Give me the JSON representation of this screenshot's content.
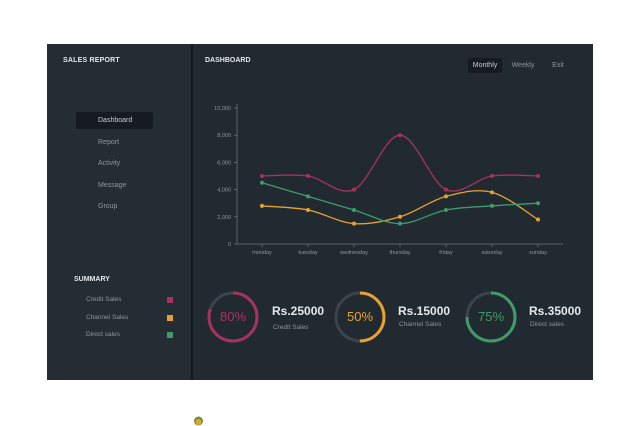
{
  "sidebar": {
    "title": "SALES REPORT",
    "nav": [
      "Dashboard",
      "Report",
      "Activity",
      "Message",
      "Group"
    ],
    "active_nav": "Dashboard",
    "summary_title": "SUMMARY",
    "summary": [
      {
        "label": "Credit Sales",
        "color": "#a8325d"
      },
      {
        "label": "Channel Sales",
        "color": "#e9a12f"
      },
      {
        "label": "Direct sales",
        "color": "#3f9c6a"
      }
    ]
  },
  "header": {
    "title": "DASHBOARD",
    "tabs": [
      "Monthly",
      "Weekly",
      "Exit"
    ],
    "active_tab": "Monthly"
  },
  "chart_data": {
    "type": "line",
    "x": [
      "monday",
      "tuesday",
      "wednesday",
      "thursday",
      "friday",
      "saturday",
      "sunday"
    ],
    "y_ticks": [
      "0",
      "2,000",
      "4,000",
      "6,000",
      "8,000",
      "10,000"
    ],
    "ylim": [
      0,
      10000
    ],
    "grid": false,
    "series": [
      {
        "color": "#a8325d",
        "values": [
          5000,
          5000,
          4000,
          8000,
          4000,
          5000,
          5000
        ]
      },
      {
        "color": "#e9a12f",
        "values": [
          2800,
          2500,
          1500,
          2000,
          3500,
          3800,
          1800
        ]
      },
      {
        "color": "#3f9c6a",
        "values": [
          4500,
          3500,
          2500,
          1500,
          2500,
          2800,
          3000
        ]
      }
    ]
  },
  "kpis": [
    {
      "percent": 80,
      "percent_label": "80%",
      "amount": "Rs.25000",
      "label": "Credit Sales",
      "color": "#a8325d"
    },
    {
      "percent": 50,
      "percent_label": "50%",
      "amount": "Rs.15000",
      "label": "Channel Sales",
      "color": "#e9a12f"
    },
    {
      "percent": 75,
      "percent_label": "75%",
      "amount": "Rs.35000",
      "label": "Direct sales",
      "color": "#3f9c6a"
    }
  ]
}
